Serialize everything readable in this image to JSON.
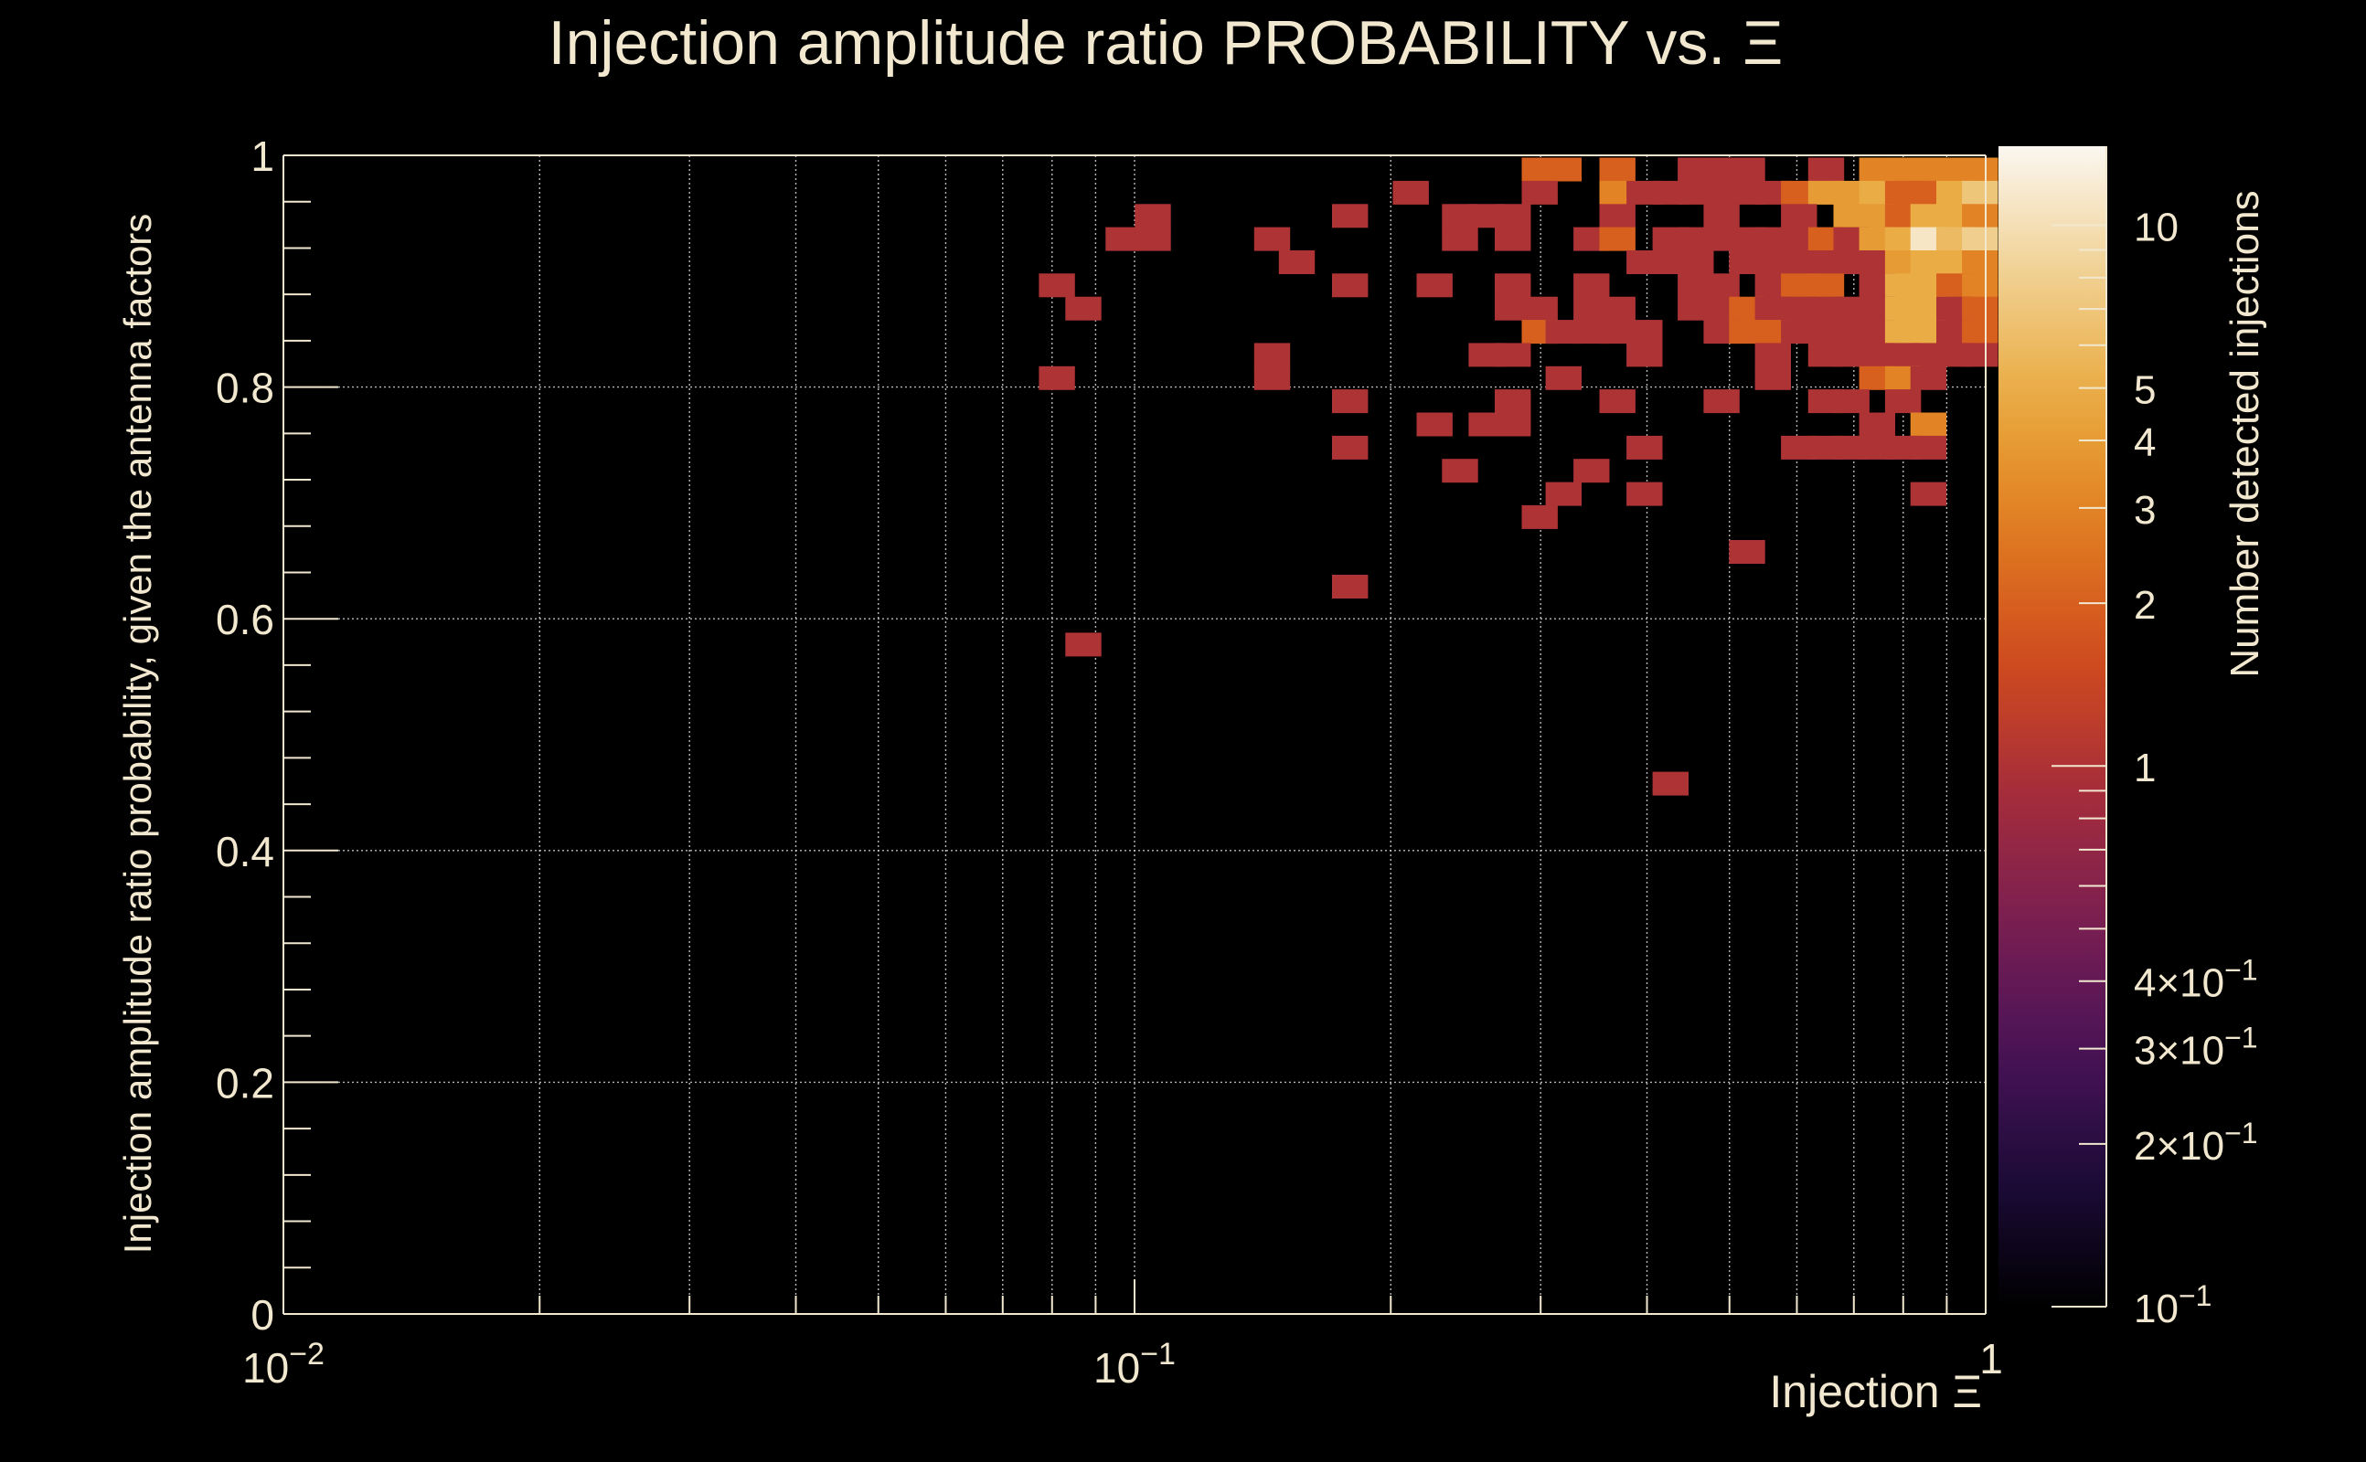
{
  "chart_data": {
    "type": "heatmap",
    "title": "Injection amplitude ratio PROBABILITY vs.  Ξ",
    "xlabel": "Injection Ξ",
    "ylabel": "Injection amplitude ratio probability, given the antenna factors",
    "colorbar_label": "Number detected injections",
    "x_scale": "log",
    "xlim": [
      0.01,
      1
    ],
    "ylim": [
      0,
      1
    ],
    "z_scale": "log",
    "zlim": [
      0.1,
      14
    ],
    "grid": true,
    "x_tick_labels": [
      {
        "value": 0.01,
        "base": "10",
        "exp": "−2"
      },
      {
        "value": 0.1,
        "base": "10",
        "exp": "−1"
      },
      {
        "value": 1,
        "base": "",
        "exp": "1"
      }
    ],
    "y_tick_labels": [
      "0",
      "0.2",
      "0.4",
      "0.6",
      "0.8",
      "1"
    ],
    "y_ticks": [
      0,
      0.2,
      0.4,
      0.6,
      0.8,
      1
    ],
    "colorbar_ticks": [
      {
        "value": 10,
        "mant": "10",
        "exp": ""
      },
      {
        "value": 5,
        "mant": "5",
        "exp": ""
      },
      {
        "value": 4,
        "mant": "4",
        "exp": ""
      },
      {
        "value": 3,
        "mant": "3",
        "exp": ""
      },
      {
        "value": 2,
        "mant": "2",
        "exp": ""
      },
      {
        "value": 1,
        "mant": "1",
        "exp": ""
      },
      {
        "value": 0.4,
        "mant": "4×10",
        "exp": "−1"
      },
      {
        "value": 0.3,
        "mant": "3×10",
        "exp": "−1"
      },
      {
        "value": 0.2,
        "mant": "2×10",
        "exp": "−1"
      },
      {
        "value": 0.1,
        "mant": "10",
        "exp": "−1"
      }
    ],
    "colormap": [
      "#000000",
      "#1d0b3a",
      "#4a1357",
      "#7a1f52",
      "#a62d3a",
      "#cf4a1e",
      "#e07a20",
      "#e9a83c",
      "#f0d090",
      "#fbf7f0"
    ],
    "cells": [
      [
        0.299,
        0.988,
        2
      ],
      [
        0.319,
        0.988,
        2
      ],
      [
        0.369,
        0.988,
        2
      ],
      [
        0.456,
        0.988,
        1
      ],
      [
        0.489,
        0.988,
        1
      ],
      [
        0.524,
        0.988,
        1
      ],
      [
        0.649,
        0.988,
        1
      ],
      [
        0.745,
        0.988,
        3
      ],
      [
        0.799,
        0.988,
        3
      ],
      [
        0.856,
        0.988,
        3
      ],
      [
        0.918,
        0.988,
        3
      ],
      [
        0.984,
        0.988,
        3
      ],
      [
        0.211,
        0.968,
        1
      ],
      [
        0.299,
        0.968,
        1
      ],
      [
        0.369,
        0.968,
        3
      ],
      [
        0.397,
        0.968,
        1
      ],
      [
        0.426,
        0.968,
        1
      ],
      [
        0.456,
        0.968,
        1
      ],
      [
        0.489,
        0.968,
        1
      ],
      [
        0.524,
        0.968,
        1
      ],
      [
        0.562,
        0.968,
        1
      ],
      [
        0.603,
        0.968,
        2
      ],
      [
        0.649,
        0.968,
        4
      ],
      [
        0.695,
        0.968,
        4
      ],
      [
        0.745,
        0.968,
        5
      ],
      [
        0.799,
        0.968,
        2
      ],
      [
        0.856,
        0.968,
        2
      ],
      [
        0.918,
        0.968,
        5
      ],
      [
        0.984,
        0.968,
        7
      ],
      [
        0.105,
        0.948,
        1
      ],
      [
        0.179,
        0.948,
        1
      ],
      [
        0.241,
        0.948,
        1
      ],
      [
        0.259,
        0.948,
        1
      ],
      [
        0.278,
        0.948,
        1
      ],
      [
        0.369,
        0.948,
        1
      ],
      [
        0.489,
        0.948,
        1
      ],
      [
        0.603,
        0.948,
        1
      ],
      [
        0.695,
        0.948,
        4
      ],
      [
        0.745,
        0.948,
        4
      ],
      [
        0.799,
        0.948,
        2
      ],
      [
        0.856,
        0.948,
        5
      ],
      [
        0.918,
        0.948,
        5
      ],
      [
        0.984,
        0.948,
        3
      ],
      [
        0.097,
        0.928,
        1
      ],
      [
        0.105,
        0.928,
        1
      ],
      [
        0.145,
        0.928,
        1
      ],
      [
        0.241,
        0.928,
        1
      ],
      [
        0.278,
        0.928,
        1
      ],
      [
        0.344,
        0.928,
        1
      ],
      [
        0.369,
        0.928,
        2
      ],
      [
        0.426,
        0.928,
        1
      ],
      [
        0.456,
        0.928,
        1
      ],
      [
        0.489,
        0.928,
        1
      ],
      [
        0.524,
        0.928,
        1
      ],
      [
        0.562,
        0.928,
        1
      ],
      [
        0.603,
        0.928,
        1
      ],
      [
        0.649,
        0.928,
        2
      ],
      [
        0.695,
        0.928,
        1
      ],
      [
        0.745,
        0.928,
        4
      ],
      [
        0.799,
        0.928,
        5
      ],
      [
        0.856,
        0.928,
        11
      ],
      [
        0.918,
        0.928,
        6
      ],
      [
        0.984,
        0.928,
        8
      ],
      [
        0.155,
        0.908,
        1
      ],
      [
        0.397,
        0.908,
        1
      ],
      [
        0.426,
        0.908,
        1
      ],
      [
        0.456,
        0.908,
        1
      ],
      [
        0.524,
        0.908,
        1
      ],
      [
        0.562,
        0.908,
        1
      ],
      [
        0.603,
        0.908,
        1
      ],
      [
        0.649,
        0.908,
        1
      ],
      [
        0.695,
        0.908,
        1
      ],
      [
        0.745,
        0.908,
        1
      ],
      [
        0.799,
        0.908,
        4
      ],
      [
        0.856,
        0.908,
        5
      ],
      [
        0.918,
        0.908,
        5
      ],
      [
        0.984,
        0.908,
        3
      ],
      [
        0.081,
        0.888,
        1
      ],
      [
        0.179,
        0.888,
        1
      ],
      [
        0.225,
        0.888,
        1
      ],
      [
        0.278,
        0.888,
        1
      ],
      [
        0.344,
        0.888,
        1
      ],
      [
        0.456,
        0.888,
        1
      ],
      [
        0.489,
        0.888,
        1
      ],
      [
        0.562,
        0.888,
        1
      ],
      [
        0.603,
        0.888,
        2
      ],
      [
        0.649,
        0.888,
        2
      ],
      [
        0.745,
        0.888,
        1
      ],
      [
        0.799,
        0.888,
        5
      ],
      [
        0.856,
        0.888,
        5
      ],
      [
        0.918,
        0.888,
        2
      ],
      [
        0.984,
        0.888,
        3
      ],
      [
        0.087,
        0.868,
        1
      ],
      [
        0.278,
        0.868,
        1
      ],
      [
        0.299,
        0.868,
        1
      ],
      [
        0.344,
        0.868,
        1
      ],
      [
        0.369,
        0.868,
        1
      ],
      [
        0.456,
        0.868,
        1
      ],
      [
        0.489,
        0.868,
        1
      ],
      [
        0.524,
        0.868,
        2
      ],
      [
        0.562,
        0.868,
        1
      ],
      [
        0.603,
        0.868,
        1
      ],
      [
        0.649,
        0.868,
        1
      ],
      [
        0.695,
        0.868,
        1
      ],
      [
        0.745,
        0.868,
        1
      ],
      [
        0.799,
        0.868,
        5
      ],
      [
        0.856,
        0.868,
        5
      ],
      [
        0.918,
        0.868,
        1
      ],
      [
        0.984,
        0.868,
        2
      ],
      [
        0.299,
        0.848,
        2
      ],
      [
        0.319,
        0.848,
        1
      ],
      [
        0.344,
        0.848,
        1
      ],
      [
        0.369,
        0.848,
        1
      ],
      [
        0.397,
        0.848,
        1
      ],
      [
        0.489,
        0.848,
        1
      ],
      [
        0.524,
        0.848,
        2
      ],
      [
        0.562,
        0.848,
        2
      ],
      [
        0.603,
        0.848,
        1
      ],
      [
        0.649,
        0.848,
        1
      ],
      [
        0.695,
        0.848,
        1
      ],
      [
        0.745,
        0.848,
        1
      ],
      [
        0.799,
        0.848,
        5
      ],
      [
        0.856,
        0.848,
        5
      ],
      [
        0.918,
        0.848,
        1
      ],
      [
        0.984,
        0.848,
        2
      ],
      [
        0.145,
        0.828,
        1
      ],
      [
        0.259,
        0.828,
        1
      ],
      [
        0.278,
        0.828,
        1
      ],
      [
        0.397,
        0.828,
        1
      ],
      [
        0.562,
        0.828,
        1
      ],
      [
        0.649,
        0.828,
        1
      ],
      [
        0.695,
        0.828,
        1
      ],
      [
        0.745,
        0.828,
        1
      ],
      [
        0.799,
        0.828,
        1
      ],
      [
        0.856,
        0.828,
        1
      ],
      [
        0.918,
        0.828,
        1
      ],
      [
        0.984,
        0.828,
        1
      ],
      [
        0.081,
        0.808,
        1
      ],
      [
        0.145,
        0.808,
        1
      ],
      [
        0.319,
        0.808,
        1
      ],
      [
        0.562,
        0.808,
        1
      ],
      [
        0.745,
        0.808,
        2
      ],
      [
        0.799,
        0.808,
        3
      ],
      [
        0.856,
        0.808,
        1
      ],
      [
        0.179,
        0.788,
        1
      ],
      [
        0.278,
        0.788,
        1
      ],
      [
        0.369,
        0.788,
        1
      ],
      [
        0.489,
        0.788,
        1
      ],
      [
        0.649,
        0.788,
        1
      ],
      [
        0.695,
        0.788,
        1
      ],
      [
        0.799,
        0.788,
        1
      ],
      [
        0.225,
        0.768,
        1
      ],
      [
        0.259,
        0.768,
        1
      ],
      [
        0.278,
        0.768,
        1
      ],
      [
        0.745,
        0.768,
        1
      ],
      [
        0.856,
        0.768,
        3
      ],
      [
        0.179,
        0.748,
        1
      ],
      [
        0.397,
        0.748,
        1
      ],
      [
        0.603,
        0.748,
        1
      ],
      [
        0.649,
        0.748,
        1
      ],
      [
        0.695,
        0.748,
        1
      ],
      [
        0.745,
        0.748,
        1
      ],
      [
        0.799,
        0.748,
        1
      ],
      [
        0.856,
        0.748,
        1
      ],
      [
        0.241,
        0.728,
        1
      ],
      [
        0.344,
        0.728,
        1
      ],
      [
        0.319,
        0.708,
        1
      ],
      [
        0.397,
        0.708,
        1
      ],
      [
        0.856,
        0.708,
        1
      ],
      [
        0.299,
        0.688,
        1
      ],
      [
        0.524,
        0.658,
        1
      ],
      [
        0.179,
        0.628,
        1
      ],
      [
        0.087,
        0.578,
        1
      ],
      [
        0.426,
        0.458,
        1
      ]
    ]
  }
}
